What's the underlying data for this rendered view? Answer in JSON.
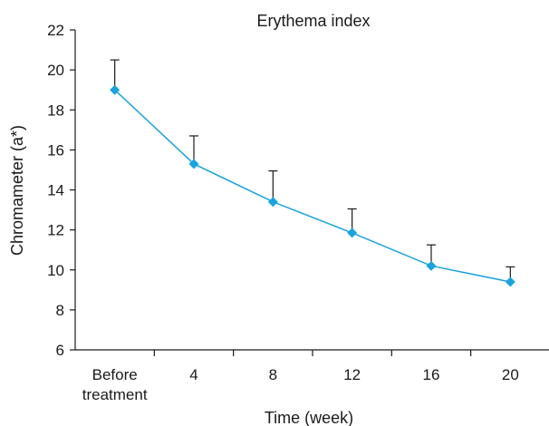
{
  "chart_data": {
    "type": "line",
    "title": "Erythema index",
    "xlabel": "Time (week)",
    "ylabel": "Chromameter (a*)",
    "categories": [
      [
        "Before",
        "treatment"
      ],
      [
        "4"
      ],
      [
        "8"
      ],
      [
        "12"
      ],
      [
        "16"
      ],
      [
        "20"
      ]
    ],
    "ylim": [
      6,
      22
    ],
    "yticks": [
      6,
      8,
      10,
      12,
      14,
      16,
      18,
      20,
      22
    ],
    "grid": false,
    "series": [
      {
        "color": "#1aa3dd",
        "marker": "diamond",
        "values": [
          19.0,
          15.3,
          13.4,
          11.85,
          10.2,
          9.4
        ],
        "error_upper": [
          1.5,
          1.4,
          1.55,
          1.2,
          1.05,
          0.75
        ]
      }
    ]
  }
}
